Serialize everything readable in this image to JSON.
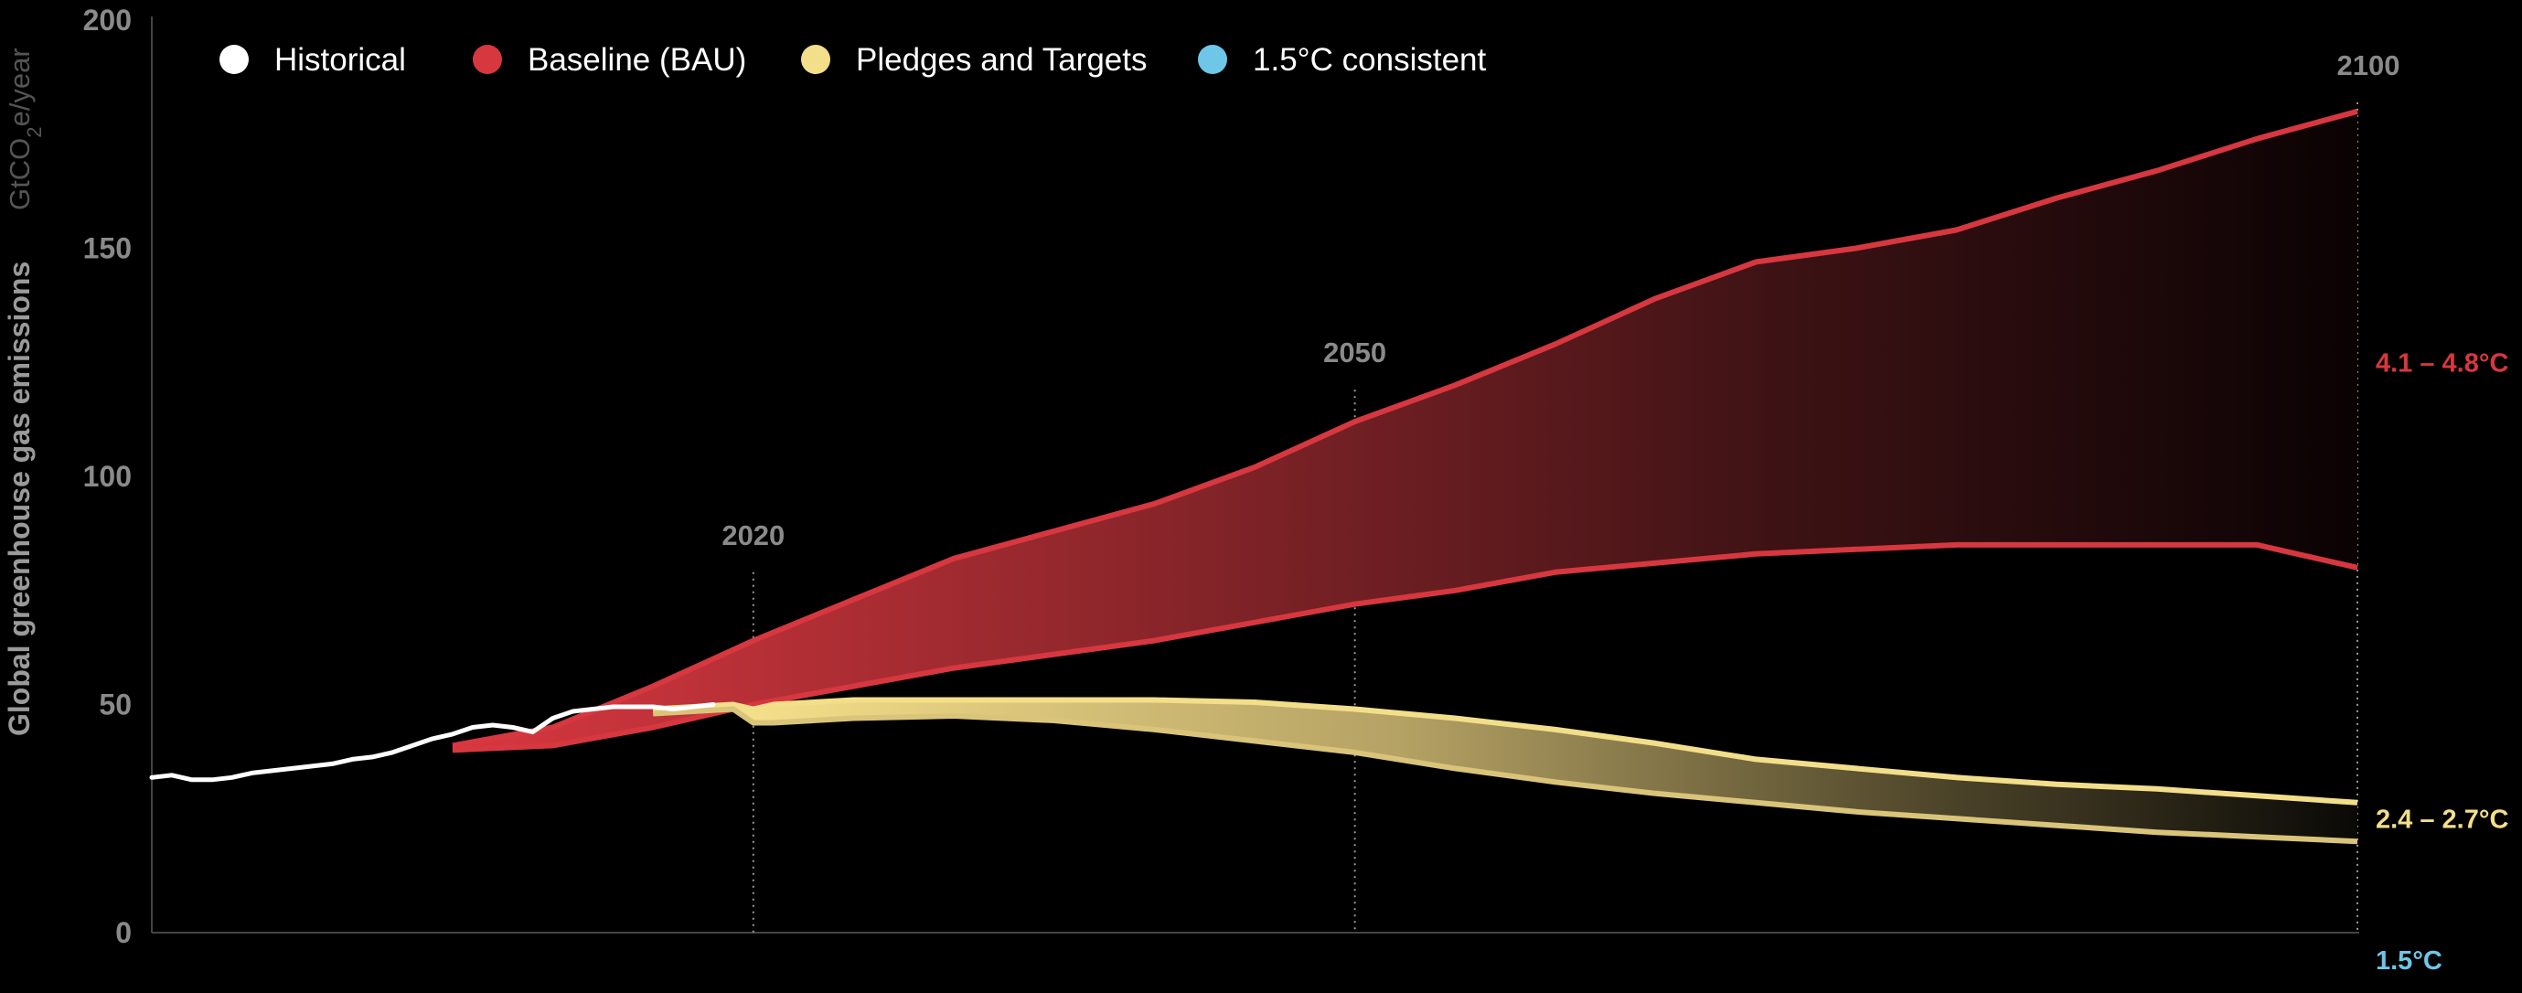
{
  "chart_data": {
    "type": "area",
    "ylabel": "Global greenhouse gas emissions",
    "yunit": {
      "pre": "GtCO",
      "sub": "2",
      "post": "e/year"
    },
    "ylim": [
      0,
      200
    ],
    "xlim": [
      1990,
      2100
    ],
    "yticks": [
      "0",
      "50",
      "100",
      "150",
      "200"
    ],
    "ytick_values": [
      0,
      50,
      100,
      150,
      200
    ],
    "year_markers": [
      {
        "year": 2020,
        "label": "2020",
        "top_value": 79
      },
      {
        "year": 2050,
        "label": "2050",
        "top_value": 119
      },
      {
        "year": 2100,
        "label": "2100",
        "top_value": 182
      }
    ],
    "legend": [
      {
        "label": "Historical",
        "color": "#ffffff"
      },
      {
        "label": "Baseline (BAU)",
        "color": "#d7373f"
      },
      {
        "label": "Pledges and Targets",
        "color": "#f3de8a"
      },
      {
        "label": "1.5°C consistent",
        "color": "#6ec6e8"
      }
    ],
    "series": [
      {
        "name": "Historical",
        "color": "#ffffff",
        "x": [
          1990,
          1991,
          1992,
          1993,
          1994,
          1995,
          1996,
          1997,
          1998,
          1999,
          2000,
          2001,
          2002,
          2003,
          2004,
          2005,
          2006,
          2007,
          2008,
          2009,
          2010,
          2011,
          2012,
          2013,
          2014,
          2015,
          2016,
          2017,
          2018
        ],
        "y": [
          34,
          34.5,
          33.5,
          33.5,
          34,
          35,
          35.5,
          36,
          36.5,
          37,
          38,
          38.5,
          39.5,
          41,
          42.5,
          43.5,
          45,
          45.5,
          45,
          44,
          47,
          48.5,
          49,
          49.5,
          49.5,
          49.5,
          49,
          49.5,
          50
        ]
      },
      {
        "name": "Baseline (BAU)",
        "color": "#d7373f",
        "x": [
          2005,
          2010,
          2015,
          2020,
          2025,
          2030,
          2035,
          2040,
          2045,
          2050,
          2055,
          2060,
          2065,
          2070,
          2075,
          2080,
          2085,
          2090,
          2095,
          2100
        ],
        "upper": [
          41,
          45,
          54,
          64,
          73,
          82,
          88,
          94,
          102,
          112,
          120,
          129,
          139,
          147,
          150,
          154,
          161,
          167,
          174,
          180
        ],
        "lower": [
          40,
          41,
          45,
          50,
          54,
          58,
          61,
          64,
          68,
          72,
          75,
          79,
          81,
          83,
          84,
          85,
          85,
          85,
          85,
          80
        ]
      },
      {
        "name": "Pledges and Targets",
        "color": "#f3de8a",
        "x": [
          2015,
          2019,
          2020,
          2021,
          2025,
          2030,
          2035,
          2040,
          2045,
          2050,
          2055,
          2060,
          2065,
          2070,
          2075,
          2080,
          2085,
          2090,
          2095,
          2100
        ],
        "upper": [
          49,
          50,
          49,
          50,
          51,
          51,
          51,
          51,
          50.5,
          49,
          47,
          44.5,
          41.5,
          38,
          36,
          34,
          32.5,
          31.5,
          30,
          28.5
        ],
        "lower": [
          48,
          49,
          46,
          46,
          47,
          47.5,
          46.5,
          44.5,
          42,
          39.5,
          36,
          33,
          30.5,
          28.5,
          26.5,
          25,
          23.5,
          22,
          21,
          20
        ]
      }
    ],
    "range_labels": [
      {
        "text": "4.1 – 4.8°C",
        "color": "#d7373f",
        "y": 125
      },
      {
        "text": "2.4 – 2.7°C",
        "color": "#f3de8a",
        "y": 25
      },
      {
        "text": "1.5°C",
        "color": "#6ec6e8",
        "y": -6
      }
    ]
  }
}
